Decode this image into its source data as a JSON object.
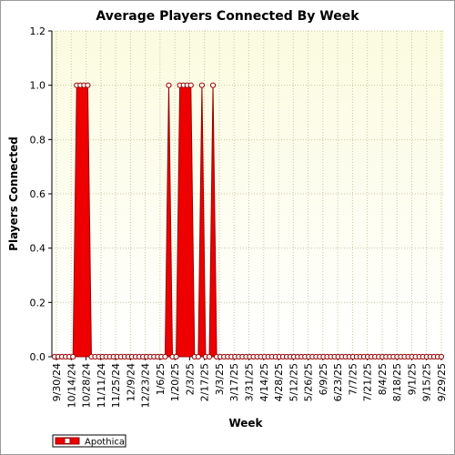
{
  "chart_data": {
    "type": "area",
    "title": "Average Players Connected By Week",
    "xlabel": "Week",
    "ylabel": "Players Connected",
    "ylim": [
      0,
      1.2
    ],
    "yticks": [
      "0.0",
      "0.2",
      "0.4",
      "0.6",
      "0.8",
      "1.0",
      "1.2"
    ],
    "x_tick_labels": [
      "9/30/24",
      "10/14/24",
      "10/28/24",
      "11/11/24",
      "11/25/24",
      "12/9/24",
      "12/23/24",
      "1/6/25",
      "1/20/25",
      "2/3/25",
      "2/17/25",
      "3/3/25",
      "3/17/25",
      "3/31/25",
      "4/14/25",
      "4/28/25",
      "5/12/25",
      "5/26/25",
      "6/9/25",
      "6/23/25",
      "7/7/25",
      "7/21/25",
      "8/4/25",
      "8/18/25",
      "9/1/25",
      "9/15/25",
      "9/29/25"
    ],
    "grid": true,
    "legend_position": "bottom-left",
    "colors": {
      "series": "#ee0000",
      "series_dark": "#990000",
      "plot_bg_top": "#fdfdea",
      "plot_bg_bottom": "#ffffff",
      "grid": "#c8c8a0"
    },
    "series": [
      {
        "name": "Apothica",
        "values": [
          [
            0,
            0
          ],
          [
            0,
            0
          ],
          [
            0,
            0
          ],
          [
            1,
            1
          ],
          [
            1,
            1
          ],
          [
            0,
            0
          ],
          [
            0,
            0
          ],
          [
            0,
            0
          ],
          [
            0,
            0
          ],
          [
            0,
            0
          ],
          [
            0,
            0
          ],
          [
            0,
            0
          ],
          [
            0,
            0
          ],
          [
            0,
            0
          ],
          [
            0,
            0
          ],
          [
            0,
            1
          ],
          [
            0,
            0
          ],
          [
            1,
            1
          ],
          [
            1,
            1
          ],
          [
            0,
            0
          ],
          [
            1,
            0
          ],
          [
            0,
            1
          ],
          [
            0,
            0
          ],
          [
            0,
            0
          ],
          [
            0,
            0
          ],
          [
            0,
            0
          ],
          [
            0,
            0
          ],
          [
            0,
            0
          ],
          [
            0,
            0
          ],
          [
            0,
            0
          ],
          [
            0,
            0
          ],
          [
            0,
            0
          ],
          [
            0,
            0
          ],
          [
            0,
            0
          ],
          [
            0,
            0
          ],
          [
            0,
            0
          ],
          [
            0,
            0
          ],
          [
            0,
            0
          ],
          [
            0,
            0
          ],
          [
            0,
            0
          ],
          [
            0,
            0
          ],
          [
            0,
            0
          ],
          [
            0,
            0
          ],
          [
            0,
            0
          ],
          [
            0,
            0
          ],
          [
            0,
            0
          ],
          [
            0,
            0
          ],
          [
            0,
            0
          ],
          [
            0,
            0
          ],
          [
            0,
            0
          ],
          [
            0,
            0
          ],
          [
            0,
            0
          ],
          [
            0,
            0
          ]
        ]
      }
    ]
  }
}
